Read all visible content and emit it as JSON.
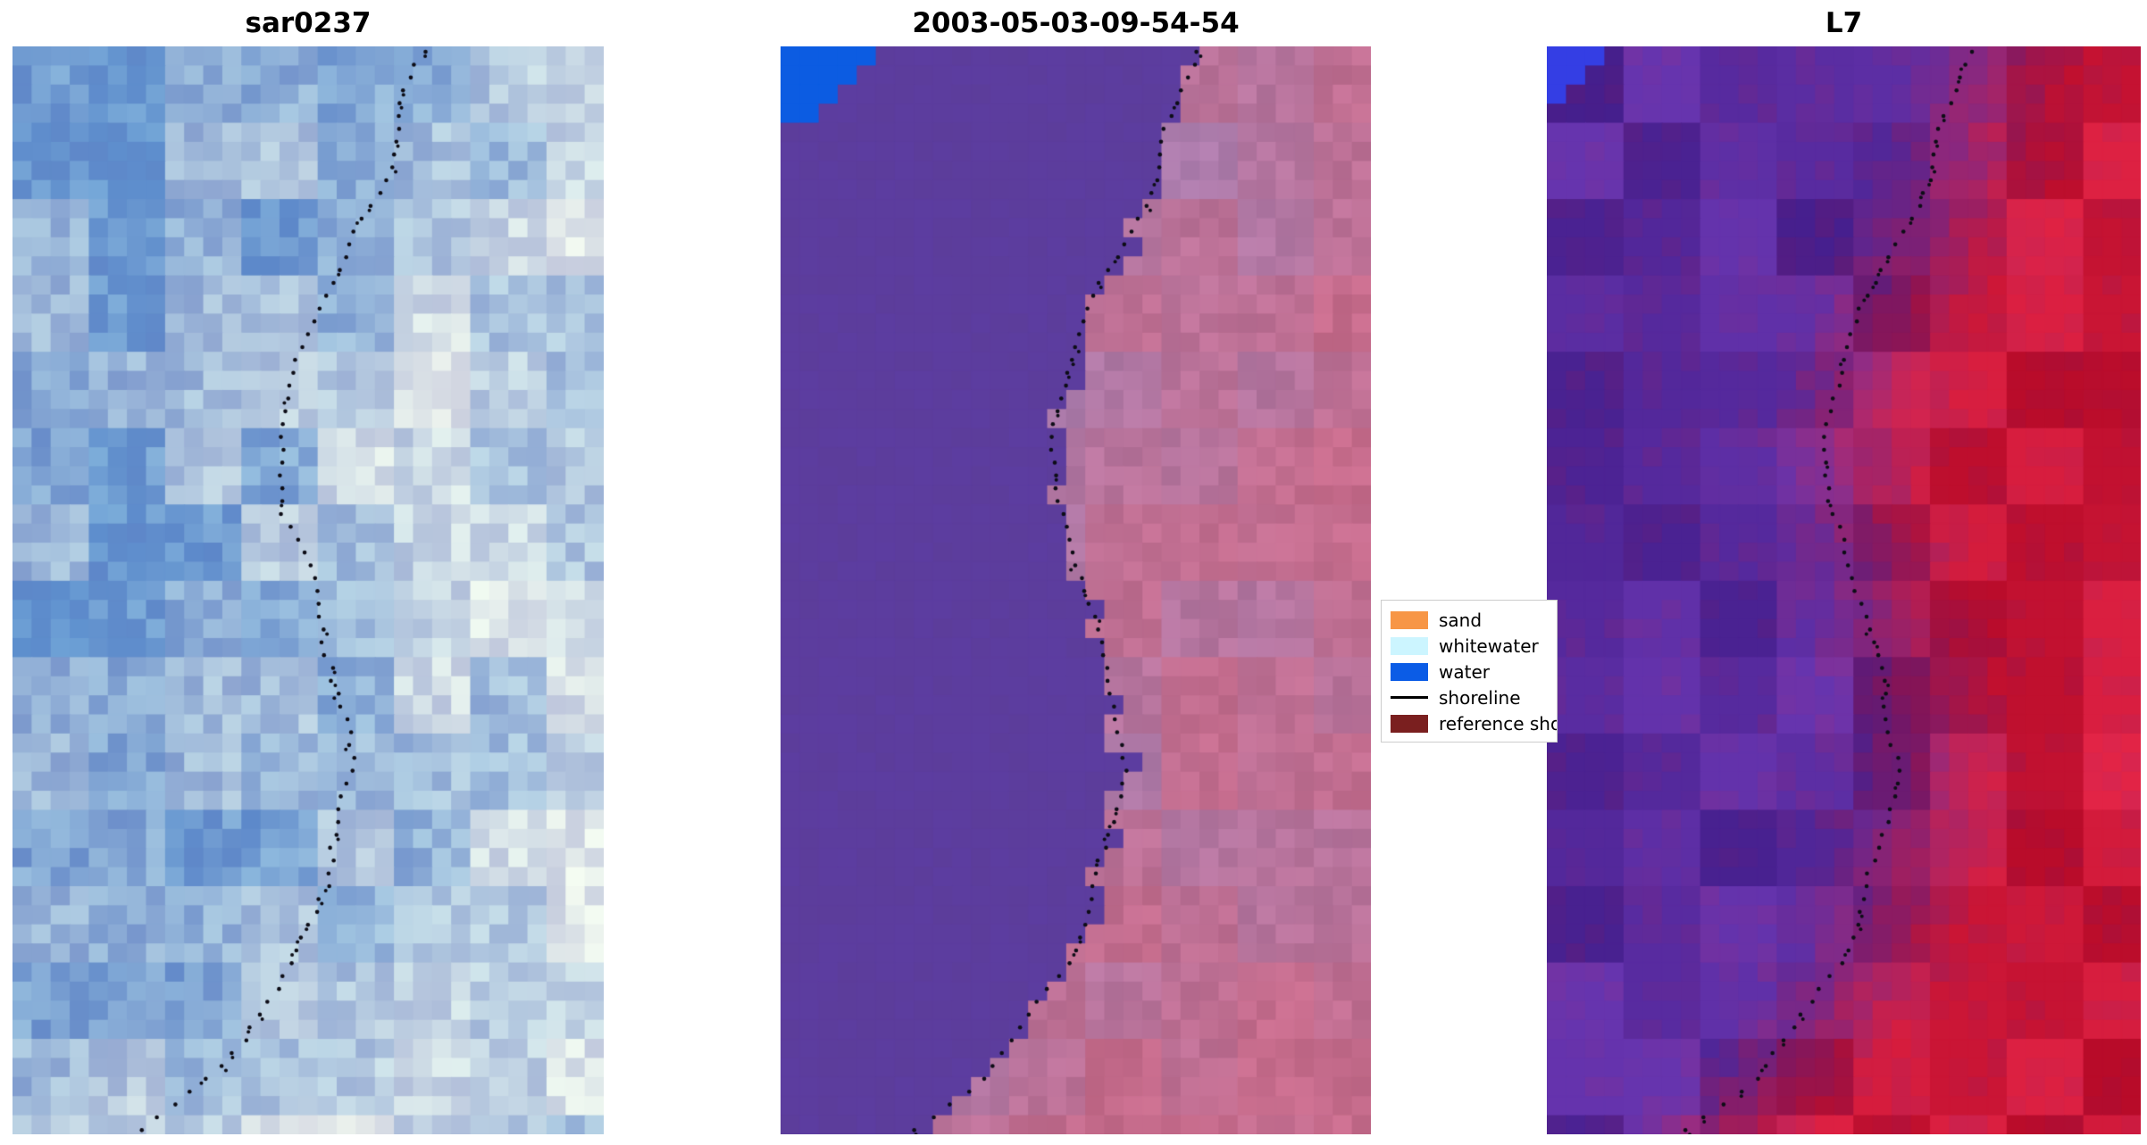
{
  "figure": {
    "panels": [
      {
        "title": "sar0237"
      },
      {
        "title": "2003-05-03-09-54-54"
      },
      {
        "title": "L7"
      }
    ],
    "legend": {
      "items": [
        {
          "label": "sand",
          "color": "#f79646",
          "type": "patch"
        },
        {
          "label": "whitewater",
          "color": "#ccf5ff",
          "type": "patch"
        },
        {
          "label": "water",
          "color": "#0b5ce6",
          "type": "patch"
        },
        {
          "label": "shoreline",
          "color": "#000000",
          "type": "line"
        },
        {
          "label": "reference sho",
          "color": "#7a1f1f",
          "type": "patch"
        }
      ]
    }
  },
  "shoreline_path": [
    [
      0.0,
      0.7
    ],
    [
      0.04,
      0.67
    ],
    [
      0.08,
      0.645
    ],
    [
      0.12,
      0.635
    ],
    [
      0.16,
      0.59
    ],
    [
      0.2,
      0.558
    ],
    [
      0.25,
      0.505
    ],
    [
      0.3,
      0.475
    ],
    [
      0.36,
      0.452
    ],
    [
      0.42,
      0.456
    ],
    [
      0.48,
      0.5
    ],
    [
      0.54,
      0.527
    ],
    [
      0.6,
      0.556
    ],
    [
      0.66,
      0.575
    ],
    [
      0.72,
      0.553
    ],
    [
      0.78,
      0.52
    ],
    [
      0.84,
      0.48
    ],
    [
      0.9,
      0.405
    ],
    [
      0.95,
      0.33
    ],
    [
      1.0,
      0.21
    ]
  ],
  "chart_data": [
    {
      "type": "heatmap",
      "title": "sar0237",
      "description": "Pixelated SAR backscatter image: steel-blue water on the left grading to bright white/pale-green land on the right, with a black dotted shoreline overlay running top to bottom.",
      "palette": [
        "#6894ce",
        "#a9c4de",
        "#eef3ee"
      ],
      "overlay": "shoreline-dots"
    },
    {
      "type": "heatmap",
      "title": "2003-05-03-09-54-54",
      "description": "Classified optical image: uniform purple water mass on the left with jagged stepped boundary, pink/mauve land on the right, bright blue water patch stepped in the top-left corner, black dotted shoreline overlay along the class boundary.",
      "palette": [
        "#5c3d9e",
        "#ac7cac",
        "#c66c8c",
        "#0b5ce6"
      ],
      "overlay": "shoreline-dots"
    },
    {
      "type": "heatmap",
      "title": "L7",
      "description": "Landsat 7 false-colour image: dark purple water on the left blending into deep red land on the right, small bright blue patch in the top-left corner, black dotted shoreline overlay.",
      "palette": [
        "#562ca0",
        "#ce1f38",
        "#343ee4"
      ],
      "overlay": "shoreline-dots"
    }
  ]
}
